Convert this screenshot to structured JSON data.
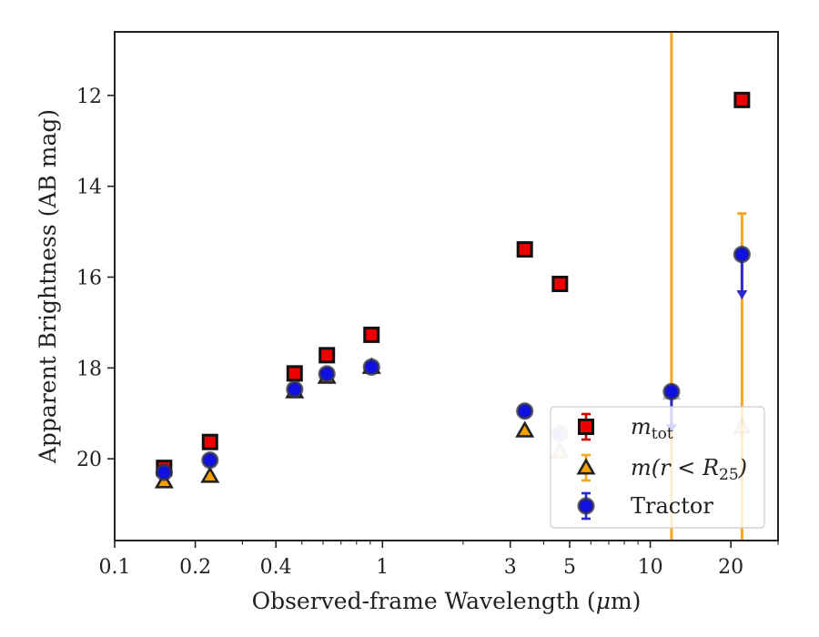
{
  "chart_data": {
    "type": "scatter",
    "xscale": "log",
    "yinverted": true,
    "xlim": [
      0.1,
      30
    ],
    "ylim": [
      21.8,
      10.6
    ],
    "xlabel_parts": [
      "Observed-frame Wavelength (",
      "μ",
      "m)"
    ],
    "ylabel": "Apparent Brightness (AB mag)",
    "xticks": [
      {
        "value": 0.1,
        "label": "0.1"
      },
      {
        "value": 0.2,
        "label": "0.2"
      },
      {
        "value": 0.4,
        "label": "0.4"
      },
      {
        "value": 1,
        "label": "1"
      },
      {
        "value": 3,
        "label": "3"
      },
      {
        "value": 5,
        "label": "5"
      },
      {
        "value": 10,
        "label": "10"
      },
      {
        "value": 20,
        "label": "20"
      }
    ],
    "yticks": [
      {
        "value": 12,
        "label": "12"
      },
      {
        "value": 14,
        "label": "14"
      },
      {
        "value": 16,
        "label": "16"
      },
      {
        "value": 18,
        "label": "18"
      },
      {
        "value": 20,
        "label": "20"
      }
    ],
    "legend_position": "lower-right",
    "series": [
      {
        "name": "m_tot",
        "legend_main": "m",
        "legend_sub": "tot",
        "marker": "square",
        "face": "#ee0000",
        "edge": "#111111",
        "errcolor": "#cc0000",
        "points": [
          {
            "x": 0.153,
            "y": 20.2
          },
          {
            "x": 0.227,
            "y": 19.63
          },
          {
            "x": 0.47,
            "y": 18.12
          },
          {
            "x": 0.62,
            "y": 17.72
          },
          {
            "x": 0.91,
            "y": 17.27
          },
          {
            "x": 3.4,
            "y": 15.39
          },
          {
            "x": 4.6,
            "y": 16.15
          },
          {
            "x": 22,
            "y": 12.1
          }
        ]
      },
      {
        "name": "m(r<R_25)",
        "legend_main": "m(r < R",
        "legend_sub": "25",
        "legend_end": ")",
        "marker": "triangle",
        "face": "#f5a000",
        "edge": "#222222",
        "errcolor": "#f5a623",
        "points": [
          {
            "x": 0.153,
            "y": 20.5
          },
          {
            "x": 0.227,
            "y": 20.38
          },
          {
            "x": 0.47,
            "y": 18.52
          },
          {
            "x": 0.62,
            "y": 18.2
          },
          {
            "x": 0.91,
            "y": 17.98
          },
          {
            "x": 3.4,
            "y": 19.38
          },
          {
            "x": 4.6,
            "y": 19.85,
            "faded": true
          },
          {
            "x": 12,
            "y": 18.55,
            "faded": true,
            "err_top": 10.6,
            "err_bottom": 21.8
          },
          {
            "x": 22,
            "y": 19.3,
            "faded": true,
            "err_top": 14.6,
            "err_bottom": 21.8
          }
        ]
      },
      {
        "name": "Tractor",
        "legend_main": "Tractor",
        "marker": "circle",
        "face": "#1010e0",
        "edge": "#333344",
        "errcolor": "#2a2ad0",
        "points": [
          {
            "x": 0.153,
            "y": 20.3
          },
          {
            "x": 0.227,
            "y": 20.03
          },
          {
            "x": 0.47,
            "y": 18.47
          },
          {
            "x": 0.62,
            "y": 18.13
          },
          {
            "x": 0.91,
            "y": 17.98
          },
          {
            "x": 3.4,
            "y": 18.95
          },
          {
            "x": 4.6,
            "y": 19.45,
            "faded": true
          },
          {
            "x": 12,
            "y": 18.52,
            "upper_limit_to": 19.4
          },
          {
            "x": 22,
            "y": 15.5,
            "upper_limit_to": 16.45
          }
        ]
      }
    ]
  }
}
